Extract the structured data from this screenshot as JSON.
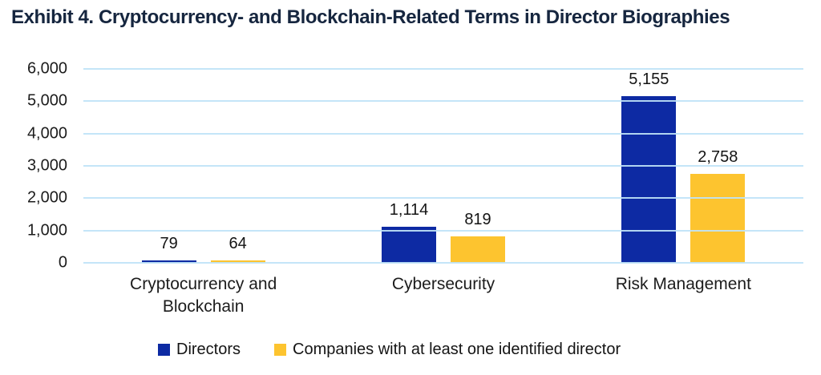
{
  "title": "Exhibit 4. Cryptocurrency- and Blockchain-Related Terms in Director Biographies",
  "colors": {
    "directors": "#0D2AA3",
    "companies": "#FDC42F",
    "gridline": "#BFE3F7",
    "title_text": "#16263F",
    "label_text": "#141414"
  },
  "chart_data": {
    "type": "bar",
    "categories": [
      "Cryptocurrency and Blockchain",
      "Cybersecurity",
      "Risk Management"
    ],
    "series": [
      {
        "name": "Directors",
        "color": "#0D2AA3",
        "values": [
          79,
          1114,
          5155
        ]
      },
      {
        "name": "Companies with at least one identified director",
        "color": "#FDC42F",
        "values": [
          64,
          819,
          2758
        ]
      }
    ],
    "value_labels": [
      [
        "79",
        "1,114",
        "5,155"
      ],
      [
        "64",
        "819",
        "2,758"
      ]
    ],
    "y_ticks": [
      0,
      1000,
      2000,
      3000,
      4000,
      5000,
      6000
    ],
    "y_tick_labels": [
      "0",
      "1,000",
      "2,000",
      "3,000",
      "4,000",
      "5,000",
      "6,000"
    ],
    "ylim": [
      0,
      6000
    ],
    "grid": true,
    "legend_position": "bottom"
  },
  "legend": {
    "items": [
      {
        "label": "Directors"
      },
      {
        "label": "Companies with at least one identified director"
      }
    ]
  }
}
